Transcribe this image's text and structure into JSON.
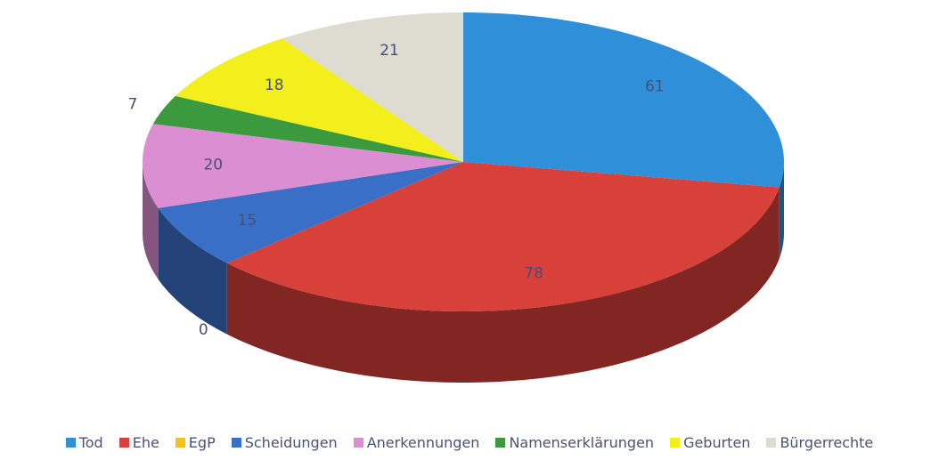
{
  "chart_data": {
    "type": "pie",
    "categories": [
      "Tod",
      "Ehe",
      "EgP",
      "Scheidungen",
      "Anerkennungen",
      "Namenserklärungen",
      "Geburten",
      "Bürgerrechte"
    ],
    "values": [
      61,
      78,
      0,
      15,
      20,
      7,
      18,
      21
    ],
    "colors": [
      "#2f8fd9",
      "#d8403a",
      "#f3c21b",
      "#3a6fc8",
      "#dc8ed2",
      "#3b9a3e",
      "#f3ef1c",
      "#dedbd1"
    ],
    "legend": "bottom"
  }
}
